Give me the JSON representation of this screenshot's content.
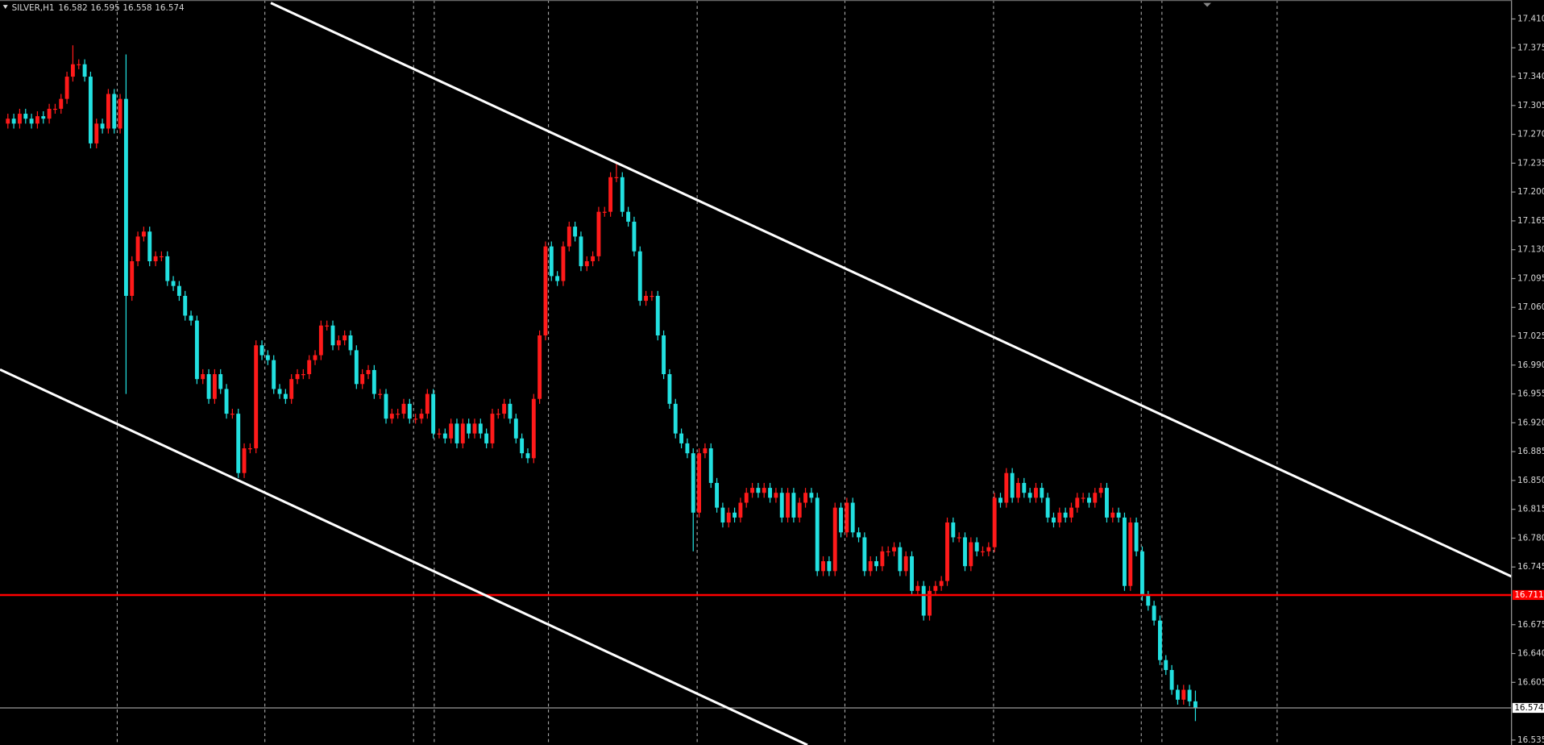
{
  "chart_data": {
    "type": "candlestick",
    "title": "SILVER,H1",
    "up_color": "#ff1a1a",
    "down_color": "#22e0e0",
    "grid": true,
    "ylim": [
      16.529,
      17.433
    ],
    "yticks": [
      {
        "value": 17.41,
        "label": "17.410"
      },
      17.375,
      {
        "value": 17.34,
        "label": "17.340"
      },
      17.305,
      {
        "value": 17.27,
        "label": "17.270"
      },
      17.235,
      {
        "value": 17.2,
        "label": "17.200"
      },
      17.165,
      {
        "value": 17.13,
        "label": "17.130"
      },
      17.095,
      {
        "value": 17.06,
        "label": "17.060"
      },
      17.025,
      {
        "value": 16.99,
        "label": "16.990"
      },
      16.955,
      {
        "value": 16.92,
        "label": "16.920"
      },
      16.885,
      {
        "value": 16.85,
        "label": "16.850"
      },
      16.815,
      {
        "value": 16.78,
        "label": "16.780"
      },
      16.745,
      16.675,
      {
        "value": 16.64,
        "label": "16.640"
      },
      16.605,
      16.535
    ],
    "hline": {
      "value": 16.711,
      "color": "#ff0000"
    },
    "last_price_color": "#9a9a9a",
    "open": [
      17.283,
      17.289,
      17.283,
      17.295,
      17.289,
      17.283,
      17.292,
      17.289,
      17.301,
      17.301,
      17.313,
      17.34,
      17.355,
      17.355,
      17.34,
      17.259,
      17.283,
      17.277,
      17.319,
      17.277,
      17.313,
      17.074,
      17.116,
      17.146,
      17.152,
      17.116,
      17.122,
      17.122,
      17.092,
      17.086,
      17.074,
      17.05,
      17.044,
      16.973,
      16.979,
      16.949,
      16.979,
      16.961,
      16.931,
      16.931,
      16.859,
      16.889,
      16.889,
      17.014,
      17.002,
      16.996,
      16.961,
      16.955,
      16.949,
      16.973,
      16.979,
      16.979,
      16.996,
      17.002,
      17.038,
      17.038,
      17.014,
      17.02,
      17.026,
      17.008,
      16.967,
      16.979,
      16.984,
      16.955,
      16.955,
      16.925,
      16.931,
      16.931,
      16.943,
      16.925,
      16.925,
      16.931,
      16.955,
      16.907,
      16.907,
      16.901,
      16.919,
      16.895,
      16.919,
      16.907,
      16.919,
      16.907,
      16.895,
      16.931,
      16.931,
      16.943,
      16.925,
      16.901,
      16.883,
      16.877,
      16.949,
      17.026,
      17.134,
      17.098,
      17.092,
      17.134,
      17.158,
      17.146,
      17.11,
      17.116,
      17.122,
      17.176,
      17.176,
      17.218,
      17.218,
      17.176,
      17.164,
      17.128,
      17.068,
      17.074,
      17.074,
      17.026,
      16.979,
      16.943,
      16.907,
      16.895,
      16.883,
      16.811,
      16.883,
      16.889,
      16.847,
      16.817,
      16.799,
      16.811,
      16.805,
      16.823,
      16.835,
      16.841,
      16.835,
      16.841,
      16.829,
      16.835,
      16.805,
      16.835,
      16.805,
      16.823,
      16.835,
      16.829,
      16.74,
      16.752,
      16.74,
      16.817,
      16.787,
      16.823,
      16.787,
      16.781,
      16.74,
      16.752,
      16.746,
      16.764,
      16.764,
      16.769,
      16.74,
      16.758,
      16.716,
      16.722,
      16.686,
      16.716,
      16.722,
      16.728,
      16.799,
      16.781,
      16.781,
      16.746,
      16.775,
      16.764,
      16.764,
      16.769,
      16.829,
      16.823,
      16.859,
      16.829,
      16.847,
      16.835,
      16.829,
      16.841,
      16.829,
      16.805,
      16.799,
      16.811,
      16.805,
      16.817,
      16.829,
      16.829,
      16.823,
      16.835,
      16.841,
      16.805,
      16.811,
      16.805,
      16.722,
      16.799,
      16.764,
      16.71,
      16.698,
      16.68,
      16.632,
      16.62,
      16.596,
      16.584,
      16.596,
      16.582
    ],
    "high": [
      17.295,
      17.295,
      17.301,
      17.301,
      17.295,
      17.298,
      17.298,
      17.307,
      17.307,
      17.319,
      17.346,
      17.378,
      17.361,
      17.361,
      17.346,
      17.289,
      17.289,
      17.325,
      17.325,
      17.319,
      17.367,
      17.122,
      17.152,
      17.158,
      17.158,
      17.128,
      17.128,
      17.128,
      17.098,
      17.092,
      17.08,
      17.056,
      17.05,
      16.985,
      16.985,
      16.985,
      16.985,
      16.967,
      16.937,
      16.937,
      16.895,
      16.895,
      17.02,
      17.02,
      17.008,
      17.002,
      16.967,
      16.961,
      16.979,
      16.985,
      16.985,
      17.002,
      17.008,
      17.044,
      17.044,
      17.044,
      17.026,
      17.032,
      17.032,
      17.014,
      16.985,
      16.99,
      16.99,
      16.961,
      16.961,
      16.937,
      16.937,
      16.949,
      16.949,
      16.931,
      16.937,
      16.961,
      16.961,
      16.913,
      16.913,
      16.925,
      16.925,
      16.925,
      16.925,
      16.925,
      16.925,
      16.913,
      16.937,
      16.937,
      16.949,
      16.949,
      16.931,
      16.907,
      16.889,
      16.955,
      17.032,
      17.14,
      17.14,
      17.104,
      17.14,
      17.164,
      17.164,
      17.152,
      17.122,
      17.128,
      17.182,
      17.182,
      17.224,
      17.236,
      17.224,
      17.182,
      17.17,
      17.134,
      17.08,
      17.08,
      17.08,
      17.032,
      16.985,
      16.949,
      16.913,
      16.901,
      16.889,
      16.889,
      16.895,
      16.895,
      16.853,
      16.823,
      16.817,
      16.817,
      16.829,
      16.841,
      16.847,
      16.847,
      16.847,
      16.847,
      16.841,
      16.841,
      16.841,
      16.841,
      16.829,
      16.841,
      16.841,
      16.835,
      16.758,
      16.758,
      16.823,
      16.823,
      16.829,
      16.829,
      16.793,
      16.787,
      16.758,
      16.758,
      16.77,
      16.77,
      16.775,
      16.775,
      16.764,
      16.764,
      16.728,
      16.728,
      16.722,
      16.728,
      16.734,
      16.805,
      16.805,
      16.787,
      16.787,
      16.781,
      16.781,
      16.77,
      16.775,
      16.835,
      16.835,
      16.865,
      16.865,
      16.853,
      16.853,
      16.841,
      16.847,
      16.847,
      16.835,
      16.811,
      16.817,
      16.817,
      16.823,
      16.835,
      16.835,
      16.835,
      16.841,
      16.847,
      16.847,
      16.817,
      16.817,
      16.811,
      16.805,
      16.805,
      16.77,
      16.716,
      16.704,
      16.686,
      16.638,
      16.626,
      16.602,
      16.602,
      16.602,
      16.595
    ],
    "low": [
      17.277,
      17.277,
      17.277,
      17.283,
      17.277,
      17.277,
      17.283,
      17.283,
      17.295,
      17.295,
      17.307,
      17.334,
      17.349,
      17.334,
      17.253,
      17.253,
      17.271,
      17.271,
      17.271,
      17.271,
      16.955,
      17.068,
      17.11,
      17.14,
      17.11,
      17.11,
      17.116,
      17.086,
      17.08,
      17.068,
      17.044,
      17.038,
      16.967,
      16.967,
      16.943,
      16.943,
      16.955,
      16.925,
      16.925,
      16.853,
      16.853,
      16.883,
      16.883,
      16.996,
      16.99,
      16.955,
      16.949,
      16.943,
      16.943,
      16.967,
      16.973,
      16.973,
      16.99,
      16.996,
      17.032,
      17.008,
      17.008,
      17.014,
      17.002,
      16.961,
      16.961,
      16.973,
      16.949,
      16.949,
      16.919,
      16.919,
      16.925,
      16.925,
      16.919,
      16.919,
      16.919,
      16.925,
      16.901,
      16.901,
      16.895,
      16.895,
      16.889,
      16.889,
      16.901,
      16.901,
      16.901,
      16.889,
      16.889,
      16.925,
      16.925,
      16.919,
      16.895,
      16.877,
      16.871,
      16.871,
      16.943,
      17.02,
      17.092,
      17.086,
      17.086,
      17.128,
      17.14,
      17.104,
      17.104,
      17.11,
      17.116,
      17.17,
      17.17,
      17.212,
      17.17,
      17.158,
      17.122,
      17.062,
      17.062,
      17.068,
      17.02,
      16.973,
      16.937,
      16.901,
      16.889,
      16.877,
      16.764,
      16.805,
      16.877,
      16.841,
      16.811,
      16.793,
      16.793,
      16.799,
      16.799,
      16.817,
      16.829,
      16.829,
      16.829,
      16.823,
      16.823,
      16.799,
      16.799,
      16.799,
      16.799,
      16.817,
      16.823,
      16.734,
      16.734,
      16.734,
      16.734,
      16.781,
      16.781,
      16.781,
      16.775,
      16.734,
      16.734,
      16.74,
      16.74,
      16.758,
      16.758,
      16.734,
      16.734,
      16.71,
      16.71,
      16.68,
      16.68,
      16.71,
      16.716,
      16.722,
      16.775,
      16.775,
      16.74,
      16.74,
      16.758,
      16.758,
      16.758,
      16.763,
      16.817,
      16.817,
      16.823,
      16.823,
      16.829,
      16.823,
      16.823,
      16.823,
      16.799,
      16.793,
      16.793,
      16.799,
      16.799,
      16.811,
      16.823,
      16.817,
      16.817,
      16.829,
      16.799,
      16.799,
      16.799,
      16.716,
      16.716,
      16.758,
      16.704,
      16.692,
      16.674,
      16.626,
      16.614,
      16.59,
      16.578,
      16.578,
      16.576,
      16.558
    ],
    "close": [
      17.289,
      17.283,
      17.295,
      17.289,
      17.283,
      17.292,
      17.289,
      17.301,
      17.301,
      17.313,
      17.34,
      17.355,
      17.355,
      17.34,
      17.259,
      17.283,
      17.277,
      17.319,
      17.277,
      17.313,
      17.074,
      17.116,
      17.146,
      17.152,
      17.116,
      17.122,
      17.122,
      17.092,
      17.086,
      17.074,
      17.05,
      17.044,
      16.973,
      16.979,
      16.949,
      16.979,
      16.961,
      16.931,
      16.931,
      16.859,
      16.889,
      16.889,
      17.014,
      17.002,
      16.996,
      16.961,
      16.955,
      16.949,
      16.973,
      16.979,
      16.979,
      16.996,
      17.002,
      17.038,
      17.038,
      17.014,
      17.02,
      17.026,
      17.008,
      16.967,
      16.979,
      16.984,
      16.955,
      16.955,
      16.925,
      16.931,
      16.931,
      16.943,
      16.925,
      16.925,
      16.931,
      16.955,
      16.907,
      16.907,
      16.901,
      16.919,
      16.895,
      16.919,
      16.907,
      16.919,
      16.907,
      16.895,
      16.931,
      16.931,
      16.943,
      16.925,
      16.901,
      16.883,
      16.877,
      16.949,
      17.026,
      17.134,
      17.098,
      17.092,
      17.134,
      17.158,
      17.146,
      17.11,
      17.116,
      17.122,
      17.176,
      17.176,
      17.218,
      17.218,
      17.176,
      17.164,
      17.128,
      17.068,
      17.074,
      17.074,
      17.026,
      16.979,
      16.943,
      16.907,
      16.895,
      16.883,
      16.811,
      16.883,
      16.889,
      16.847,
      16.817,
      16.799,
      16.811,
      16.805,
      16.823,
      16.835,
      16.841,
      16.835,
      16.841,
      16.829,
      16.835,
      16.805,
      16.835,
      16.805,
      16.823,
      16.835,
      16.829,
      16.74,
      16.752,
      16.74,
      16.817,
      16.787,
      16.823,
      16.787,
      16.781,
      16.74,
      16.752,
      16.746,
      16.764,
      16.764,
      16.769,
      16.74,
      16.758,
      16.716,
      16.722,
      16.686,
      16.716,
      16.722,
      16.728,
      16.799,
      16.781,
      16.781,
      16.746,
      16.775,
      16.764,
      16.764,
      16.769,
      16.829,
      16.823,
      16.859,
      16.829,
      16.847,
      16.835,
      16.829,
      16.841,
      16.829,
      16.805,
      16.799,
      16.811,
      16.805,
      16.817,
      16.829,
      16.829,
      16.823,
      16.835,
      16.841,
      16.805,
      16.811,
      16.805,
      16.722,
      16.799,
      16.764,
      16.71,
      16.698,
      16.68,
      16.632,
      16.62,
      16.596,
      16.584,
      16.596,
      16.582,
      16.574
    ]
  }
}
